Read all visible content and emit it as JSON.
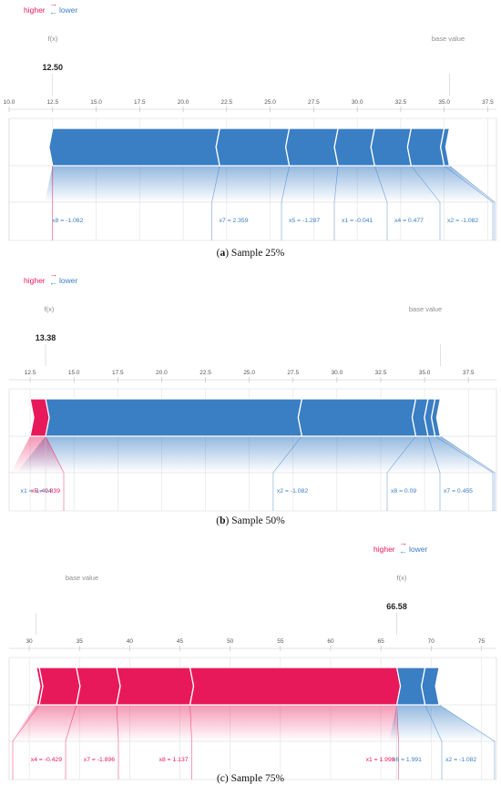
{
  "colors": {
    "positive": "#e8195a",
    "negative": "#3a7ec4",
    "grid": "#d3d3d3",
    "tick": "#555555",
    "faint": "#8e8e8e"
  },
  "legend": {
    "higher": "higher",
    "lower": "lower",
    "arrow_right": "→",
    "arrow_left": "←"
  },
  "labels": {
    "fx": "f(x)",
    "base_value": "base value"
  },
  "chart_data": [
    {
      "type": "force",
      "caption_letter": "a",
      "caption_text": " Sample 25%",
      "caption_style": "bold",
      "output_value": "12.50",
      "fx": 12.5,
      "base_value": 35.3,
      "xlim": [
        10.0,
        38.0
      ],
      "ticks": [
        "10.0",
        "12.5",
        "15.0",
        "17.5",
        "20.0",
        "22.5",
        "25.0",
        "27.5",
        "30.0",
        "32.5",
        "35.0",
        "37.5"
      ],
      "positive": [],
      "negative": [
        {
          "label": "x8 = -1.062",
          "start": 12.5,
          "end": 22.1
        },
        {
          "label": "x7 = 2.359",
          "start": 22.1,
          "end": 26.1
        },
        {
          "label": "x5 = -1.287",
          "start": 26.1,
          "end": 28.9
        },
        {
          "label": "x1 = -0.041",
          "start": 28.9,
          "end": 31.0
        },
        {
          "label": "x4 = 0.477",
          "start": 31.0,
          "end": 33.1
        },
        {
          "label": "x2 = -1.082",
          "start": 33.1,
          "end": 35.0
        },
        {
          "label": "",
          "start": 35.0,
          "end": 35.3
        }
      ]
    },
    {
      "type": "force",
      "caption_letter": "b",
      "caption_text": " Sample 50%",
      "caption_style": "bold",
      "output_value": "13.38",
      "fx": 13.38,
      "base_value": 35.9,
      "xlim": [
        11.3,
        39.1
      ],
      "ticks": [
        "12.5",
        "15.0",
        "17.5",
        "20.0",
        "22.5",
        "25.0",
        "27.5",
        "30.0",
        "32.5",
        "35.0",
        "37.5"
      ],
      "positive": [
        {
          "label": "x5 = 0.839",
          "start": 12.5,
          "end": 13.38
        }
      ],
      "negative": [
        {
          "label": "x1 = -1.494",
          "start": 13.38,
          "end": 28.0
        },
        {
          "label": "x2 = -1.082",
          "start": 28.0,
          "end": 34.5
        },
        {
          "label": "x8 = 0.09",
          "start": 34.5,
          "end": 35.2
        },
        {
          "label": "x7 = 0.455",
          "start": 35.2,
          "end": 35.6
        },
        {
          "label": "",
          "start": 35.6,
          "end": 35.9
        }
      ]
    },
    {
      "type": "force",
      "caption_letter": "c",
      "caption_text": " Sample 75%",
      "caption_style": "plain",
      "output_value": "66.58",
      "fx": 66.58,
      "base_value": 30.7,
      "xlim": [
        28.0,
        76.5
      ],
      "ticks": [
        "30",
        "35",
        "40",
        "45",
        "50",
        "55",
        "60",
        "65",
        "70",
        "75"
      ],
      "positive": [
        {
          "label": "",
          "start": 30.7,
          "end": 31.0
        },
        {
          "label": "x4 = -0.429",
          "start": 31.0,
          "end": 34.7
        },
        {
          "label": "x7 = -1.896",
          "start": 34.7,
          "end": 38.7
        },
        {
          "label": "x8 = 1.137",
          "start": 38.7,
          "end": 46.0
        },
        {
          "label": "x1 = 1.998",
          "start": 46.0,
          "end": 66.58
        }
      ],
      "negative": [
        {
          "label": "x6 = 1.991",
          "start": 66.58,
          "end": 69.4
        },
        {
          "label": "x2 = -1.082",
          "start": 69.4,
          "end": 70.8
        }
      ]
    }
  ]
}
